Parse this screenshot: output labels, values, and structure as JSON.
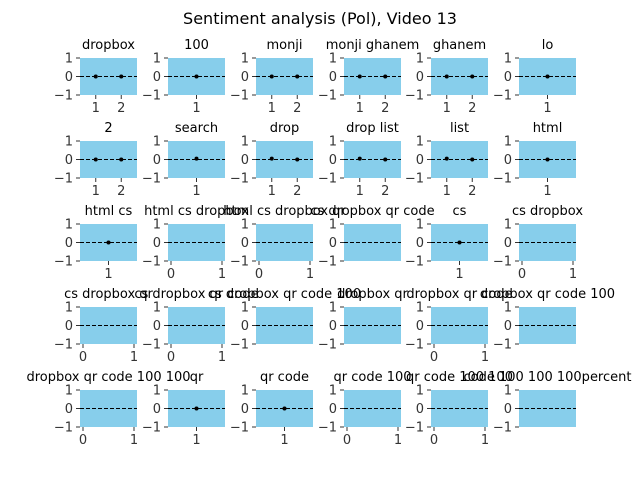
{
  "chart_data": {
    "type": "scatter",
    "title": "Sentiment analysis (Pol), Video 13",
    "colors": {
      "panel_bg": "#87ceeb",
      "zero_line": "#000000",
      "point": "#000000",
      "axis": "#ffffff",
      "tick_text": "#333333"
    },
    "zero_line_style": "dashed",
    "grid": false,
    "ylim": [
      -1,
      1
    ],
    "panels": [
      {
        "title": "dropbox",
        "xticks": [
          "1",
          "2"
        ],
        "xlim": [
          0.5,
          2.5
        ],
        "points": [
          [
            1,
            0
          ],
          [
            2,
            0
          ]
        ]
      },
      {
        "title": "100",
        "xticks": [
          "1"
        ],
        "xlim": [
          0.7,
          1.3
        ],
        "points": [
          [
            1,
            0
          ]
        ]
      },
      {
        "title": "monji",
        "xticks": [
          "1",
          "2"
        ],
        "xlim": [
          0.5,
          2.5
        ],
        "points": [
          [
            1,
            0
          ],
          [
            2,
            0
          ]
        ]
      },
      {
        "title": "monji ghanem",
        "xticks": [
          "1",
          "2"
        ],
        "xlim": [
          0.5,
          2.5
        ],
        "points": [
          [
            1,
            0
          ],
          [
            2,
            0
          ]
        ]
      },
      {
        "title": "ghanem",
        "xticks": [
          "1",
          "2"
        ],
        "xlim": [
          0.5,
          2.5
        ],
        "points": [
          [
            1,
            0
          ],
          [
            2,
            0
          ]
        ]
      },
      {
        "title": "lo",
        "xticks": [
          "1"
        ],
        "xlim": [
          0.7,
          1.3
        ],
        "points": [
          [
            1,
            0
          ]
        ]
      },
      {
        "title": "2",
        "xticks": [
          "1",
          "2"
        ],
        "xlim": [
          0.5,
          2.5
        ],
        "points": [
          [
            1,
            0
          ],
          [
            2,
            0
          ]
        ]
      },
      {
        "title": "search",
        "xticks": [
          "1"
        ],
        "xlim": [
          0.7,
          1.3
        ],
        "points": [
          [
            1,
            0.05
          ]
        ]
      },
      {
        "title": "drop",
        "xticks": [
          "1",
          "2"
        ],
        "xlim": [
          0.5,
          2.5
        ],
        "points": [
          [
            1,
            0.05
          ],
          [
            2,
            0
          ]
        ]
      },
      {
        "title": "drop list",
        "xticks": [
          "1",
          "2"
        ],
        "xlim": [
          0.5,
          2.5
        ],
        "points": [
          [
            1,
            0.05
          ],
          [
            2,
            0
          ]
        ]
      },
      {
        "title": "list",
        "xticks": [
          "1",
          "2"
        ],
        "xlim": [
          0.5,
          2.5
        ],
        "points": [
          [
            1,
            0.05
          ],
          [
            2,
            0
          ]
        ]
      },
      {
        "title": "html",
        "xticks": [
          "1"
        ],
        "xlim": [
          0.7,
          1.3
        ],
        "points": [
          [
            1,
            0
          ]
        ]
      },
      {
        "title": "html cs",
        "xticks": [
          "1"
        ],
        "xlim": [
          0.7,
          1.3
        ],
        "points": [
          [
            1,
            0
          ]
        ]
      },
      {
        "title": "html cs dropbox",
        "xticks": [
          "0",
          "1"
        ],
        "xlim": [
          0,
          1
        ],
        "points": []
      },
      {
        "title": "html cs dropbox qr",
        "xticks": [
          "0",
          "1"
        ],
        "xlim": [
          0,
          1
        ],
        "points": []
      },
      {
        "title": "cs dropbox qr code",
        "xticks": [],
        "xlim": [
          0,
          1
        ],
        "points": []
      },
      {
        "title": "cs",
        "xticks": [
          "1"
        ],
        "xlim": [
          0.7,
          1.3
        ],
        "points": [
          [
            1,
            0
          ]
        ]
      },
      {
        "title": "cs dropbox",
        "xticks": [
          "0",
          "1"
        ],
        "xlim": [
          0,
          1
        ],
        "points": []
      },
      {
        "title": "cs dropbox qr",
        "xticks": [
          "0",
          "1"
        ],
        "xlim": [
          0,
          1
        ],
        "points": []
      },
      {
        "title": "cs dropbox qr code",
        "xticks": [
          "0",
          "1"
        ],
        "xlim": [
          0,
          1
        ],
        "points": []
      },
      {
        "title": "cs dropbox qr code 100",
        "xticks": [],
        "xlim": [
          0,
          1
        ],
        "points": []
      },
      {
        "title": "dropbox qr",
        "xticks": [],
        "xlim": [
          0,
          1
        ],
        "points": []
      },
      {
        "title": "dropbox qr code",
        "xticks": [
          "0",
          "1"
        ],
        "xlim": [
          0,
          1
        ],
        "points": []
      },
      {
        "title": "dropbox qr code 100",
        "xticks": [],
        "xlim": [
          0,
          1
        ],
        "points": []
      },
      {
        "title": "dropbox qr code 100 100",
        "xticks": [
          "0",
          "1"
        ],
        "xlim": [
          0,
          1
        ],
        "points": []
      },
      {
        "title": "qr",
        "xticks": [
          "1"
        ],
        "xlim": [
          0.7,
          1.3
        ],
        "points": [
          [
            1,
            0
          ]
        ]
      },
      {
        "title": "qr code",
        "xticks": [
          "1"
        ],
        "xlim": [
          0.7,
          1.3
        ],
        "points": [
          [
            1,
            0
          ]
        ]
      },
      {
        "title": "qr code 100",
        "xticks": [
          "0",
          "1"
        ],
        "xlim": [
          0,
          1
        ],
        "points": []
      },
      {
        "title": "qr code 100 100",
        "xticks": [
          "0",
          "1"
        ],
        "xlim": [
          0,
          1
        ],
        "points": []
      },
      {
        "title": "code 100 100 100percent",
        "xticks": [],
        "xlim": [
          0,
          1
        ],
        "points": []
      }
    ]
  }
}
